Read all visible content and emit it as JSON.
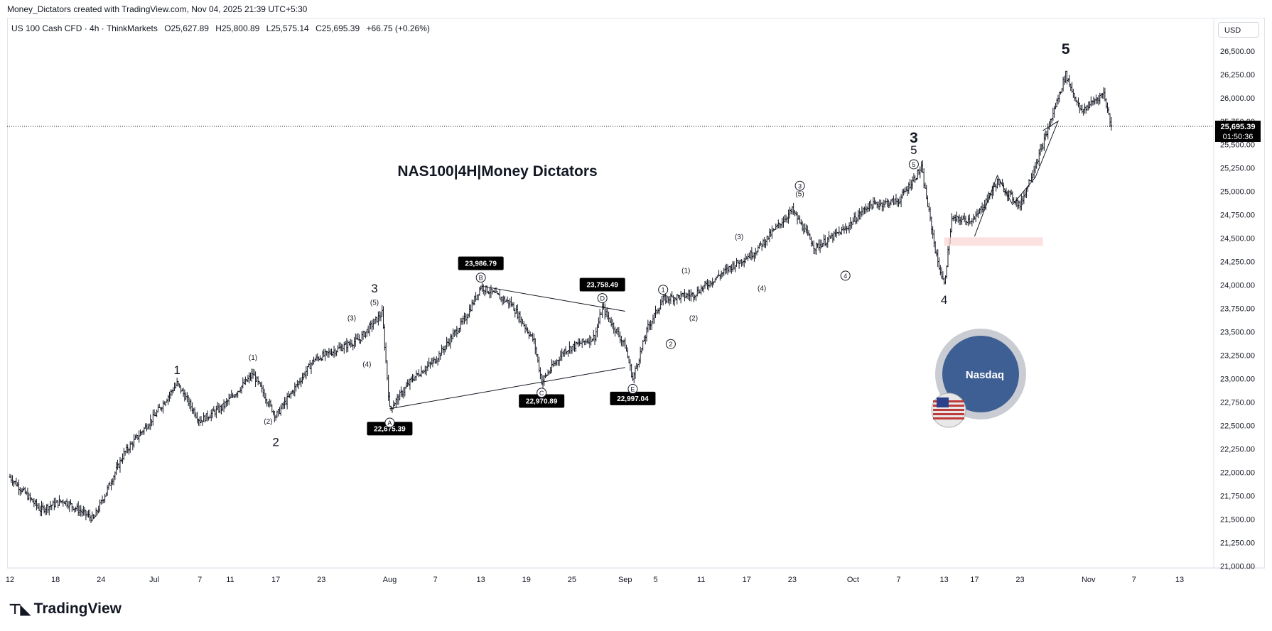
{
  "header": {
    "credit": "Money_Dictators created with TradingView.com, Nov 04, 2025 21:39 UTC+5:30",
    "symbol": "US 100 Cash CFD · 4h · ThinkMarkets",
    "open": "O25,627.89",
    "high": "H25,800.89",
    "low": "L25,575.14",
    "close": "C25,695.39",
    "change": "+66.75 (+0.26%)",
    "currency": "USD"
  },
  "brand": {
    "name": "TradingView",
    "icon": "tradingview-logo-icon"
  },
  "colors": {
    "candle": "#131722",
    "label_bg": "#000000",
    "zone": "#fbdada",
    "price_line": "#131722"
  },
  "chart_data": {
    "type": "ohlc",
    "title": "NAS100|4H|Money Dictators",
    "x_ticks": [
      "12",
      "18",
      "24",
      "Jul",
      "7",
      "11",
      "17",
      "23",
      "Aug",
      "7",
      "13",
      "19",
      "25",
      "Sep",
      "5",
      "11",
      "17",
      "23",
      "Oct",
      "7",
      "13",
      "17",
      "23",
      "Nov",
      "7",
      "13"
    ],
    "y_ticks": [
      "26,500.00",
      "26,250.00",
      "26,000.00",
      "25,750.00",
      "25,500.00",
      "25,250.00",
      "25,000.00",
      "24,750.00",
      "24,500.00",
      "24,250.00",
      "24,000.00",
      "23,750.00",
      "23,500.00",
      "23,250.00",
      "23,000.00",
      "22,750.00",
      "22,500.00",
      "22,250.00",
      "22,000.00",
      "21,750.00",
      "21,500.00",
      "21,250.00",
      "21,000.00"
    ],
    "y_range": [
      20980,
      26620
    ],
    "x_range": [
      "2025-06-12",
      "2025-11-13"
    ],
    "price_path": [
      [
        "2025-06-12",
        21950
      ],
      [
        "2025-06-16",
        21600
      ],
      [
        "2025-06-19",
        21700
      ],
      [
        "2025-06-23",
        21500
      ],
      [
        "2025-06-27",
        22200
      ],
      [
        "2025-07-01",
        22600
      ],
      [
        "2025-07-04",
        22950
      ],
      [
        "2025-07-07",
        22550
      ],
      [
        "2025-07-10",
        22700
      ],
      [
        "2025-07-14",
        23050
      ],
      [
        "2025-07-17",
        22600
      ],
      [
        "2025-07-22",
        23200
      ],
      [
        "2025-07-28",
        23420
      ],
      [
        "2025-07-31",
        23700
      ],
      [
        "2025-08-01",
        22675
      ],
      [
        "2025-08-04",
        23000
      ],
      [
        "2025-08-07",
        23200
      ],
      [
        "2025-08-11",
        23650
      ],
      [
        "2025-08-13",
        23986
      ],
      [
        "2025-08-17",
        23800
      ],
      [
        "2025-08-20",
        23400
      ],
      [
        "2025-08-21",
        22970
      ],
      [
        "2025-08-24",
        23300
      ],
      [
        "2025-08-28",
        23450
      ],
      [
        "2025-08-29",
        23758
      ],
      [
        "2025-09-01",
        23350
      ],
      [
        "2025-09-02",
        22997
      ],
      [
        "2025-09-04",
        23550
      ],
      [
        "2025-09-06",
        23850
      ],
      [
        "2025-09-10",
        23900
      ],
      [
        "2025-09-15",
        24200
      ],
      [
        "2025-09-18",
        24350
      ],
      [
        "2025-09-23",
        24800
      ],
      [
        "2025-09-26",
        24400
      ],
      [
        "2025-09-30",
        24600
      ],
      [
        "2025-10-03",
        24850
      ],
      [
        "2025-10-07",
        24900
      ],
      [
        "2025-10-10",
        25250
      ],
      [
        "2025-10-12",
        24300
      ],
      [
        "2025-10-13",
        24000
      ],
      [
        "2025-10-14",
        24700
      ],
      [
        "2025-10-17",
        24700
      ],
      [
        "2025-10-20",
        25100
      ],
      [
        "2025-10-23",
        24850
      ],
      [
        "2025-10-26",
        25500
      ],
      [
        "2025-10-29",
        26250
      ],
      [
        "2025-10-31",
        25850
      ],
      [
        "2025-11-03",
        26050
      ],
      [
        "2025-11-04",
        25695
      ]
    ],
    "price_labels": [
      {
        "text": "22,675.39",
        "date": "2025-08-01",
        "price": 22675
      },
      {
        "text": "23,986.79",
        "date": "2025-08-13",
        "price": 23986
      },
      {
        "text": "22,970.89",
        "date": "2025-08-21",
        "price": 22970
      },
      {
        "text": "23,758.49",
        "date": "2025-08-29",
        "price": 23758
      },
      {
        "text": "22,997.04",
        "date": "2025-09-02",
        "price": 22997
      }
    ],
    "last_price": {
      "value": "25,695.39",
      "countdown": "01:50:36",
      "price": 25695
    },
    "triangle_lines": [
      [
        [
          "2025-08-01",
          22680
        ],
        [
          "2025-09-01",
          23120
        ]
      ],
      [
        [
          "2025-08-13",
          23990
        ],
        [
          "2025-09-01",
          23720
        ]
      ]
    ],
    "support_zone": {
      "start": "2025-10-13",
      "end": "2025-10-26",
      "top": 24510,
      "bottom": 24420
    },
    "projection_path": [
      [
        "2025-10-17",
        24520
      ],
      [
        "2025-10-20",
        25170
      ],
      [
        "2025-10-22",
        24860
      ],
      [
        "2025-10-25",
        25150
      ],
      [
        "2025-10-28",
        25750
      ],
      [
        "2025-10-26",
        25650
      ]
    ],
    "wave_labels": [
      {
        "text": "1",
        "date": "2025-07-04",
        "price": 23050,
        "size": "large"
      },
      {
        "text": "2",
        "date": "2025-07-17",
        "price": 22280,
        "size": "large"
      },
      {
        "text": "3",
        "date": "2025-07-30",
        "price": 23920,
        "size": "large"
      },
      {
        "text": "4",
        "date": "2025-10-13",
        "price": 23800,
        "size": "large"
      },
      {
        "text": "5",
        "date": "2025-10-29",
        "price": 26470,
        "size": "xlarge"
      },
      {
        "text": "3",
        "date": "2025-10-09",
        "price": 25520,
        "size": "xlarge"
      },
      {
        "text": "5",
        "date": "2025-10-09",
        "price": 25400,
        "size": "large"
      },
      {
        "text": "4",
        "date": "2025-09-02",
        "price": 22820,
        "size": "medium"
      },
      {
        "text": "(1)",
        "date": "2025-07-14",
        "price": 23200,
        "size": "small"
      },
      {
        "text": "(2)",
        "date": "2025-07-16",
        "price": 22520,
        "size": "small"
      },
      {
        "text": "(3)",
        "date": "2025-07-27",
        "price": 23620,
        "size": "small"
      },
      {
        "text": "(4)",
        "date": "2025-07-29",
        "price": 23130,
        "size": "small"
      },
      {
        "text": "(5)",
        "date": "2025-07-30",
        "price": 23790,
        "size": "small"
      },
      {
        "text": "(1)",
        "date": "2025-09-09",
        "price": 24130,
        "size": "small"
      },
      {
        "text": "(2)",
        "date": "2025-09-10",
        "price": 23620,
        "size": "small"
      },
      {
        "text": "(3)",
        "date": "2025-09-16",
        "price": 24490,
        "size": "small"
      },
      {
        "text": "(4)",
        "date": "2025-09-19",
        "price": 23940,
        "size": "small"
      },
      {
        "text": "(5)",
        "date": "2025-09-24",
        "price": 24950,
        "size": "small"
      }
    ],
    "circled_labels": [
      {
        "text": "A",
        "date": "2025-08-01",
        "price": 22530
      },
      {
        "text": "B",
        "date": "2025-08-13",
        "price": 24080
      },
      {
        "text": "C",
        "date": "2025-08-21",
        "price": 22850
      },
      {
        "text": "D",
        "date": "2025-08-29",
        "price": 23860
      },
      {
        "text": "E",
        "date": "2025-09-02",
        "price": 22890
      },
      {
        "text": "1",
        "date": "2025-09-06",
        "price": 23950
      },
      {
        "text": "2",
        "date": "2025-09-07",
        "price": 23370
      },
      {
        "text": "3",
        "date": "2025-09-24",
        "price": 25060
      },
      {
        "text": "4",
        "date": "2025-09-30",
        "price": 24100
      },
      {
        "text": "5",
        "date": "2025-10-09",
        "price": 25290
      }
    ],
    "badge": {
      "text": "Nasdaq",
      "icon": "nasdaq-badge-icon",
      "flag_icon": "us-flag-icon"
    }
  }
}
